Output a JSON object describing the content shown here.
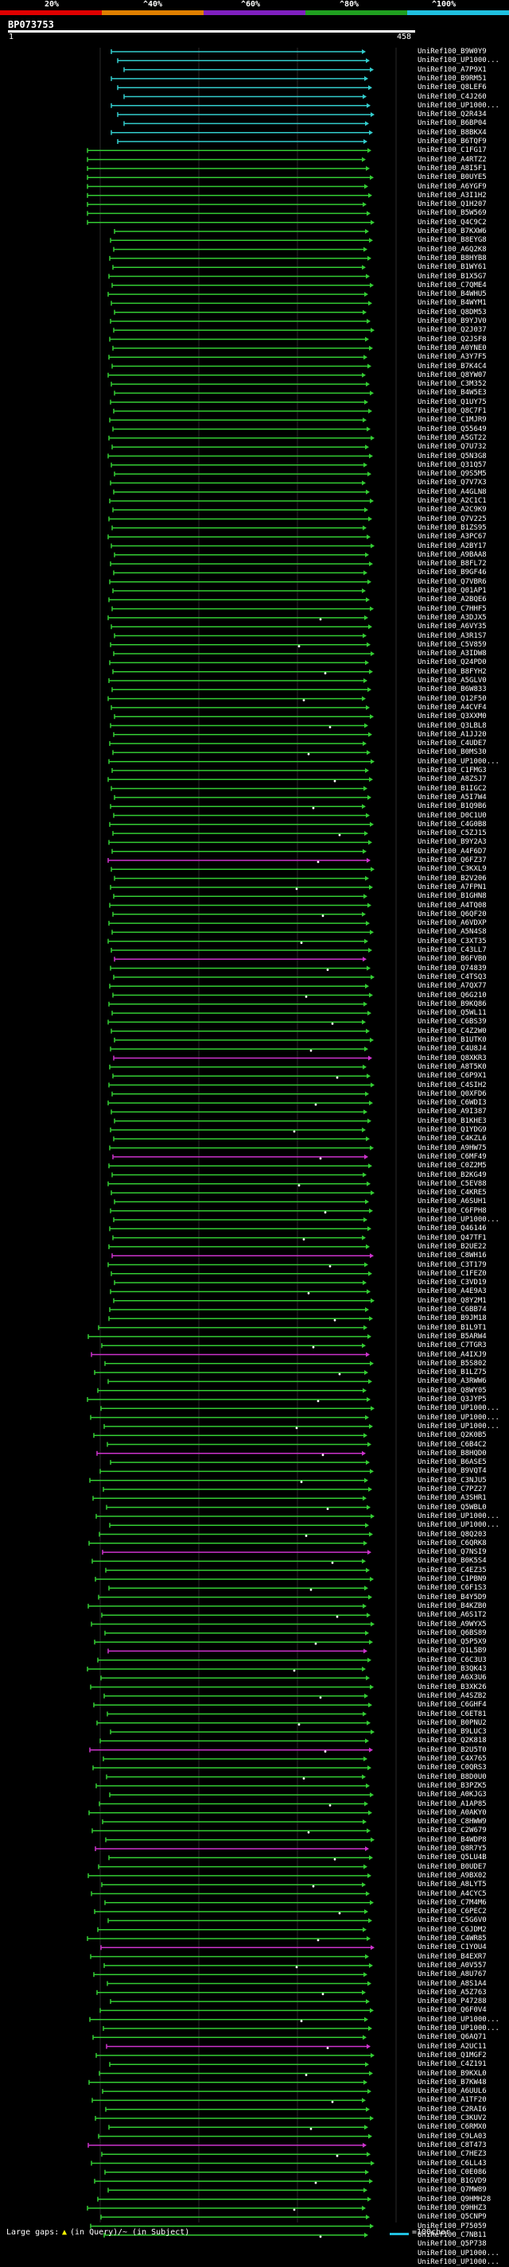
{
  "legend": {
    "ticks": [
      "20%",
      "^40%",
      "^60%",
      "^80%",
      "^100%"
    ],
    "colors": [
      "#e00000",
      "#e08000",
      "#8020c0",
      "#20a020",
      "#20c0e0"
    ]
  },
  "query": {
    "name": "BP073753",
    "start": "1",
    "end": "458"
  },
  "hit_labels": [
    "UniRef100_B9W0Y9",
    "UniRef100_UP1000...",
    "UniRef100_A7P9X1",
    "UniRef100_B9RM51",
    "UniRef100_Q8LEF6",
    "UniRef100_C4J260",
    "UniRef100_UP1000...",
    "UniRef100_Q2R434",
    "UniRef100_B6BP04",
    "UniRef100_B8BKX4",
    "UniRef100_B6TQF9",
    "UniRef100_C1FG17",
    "UniRef100_A4RTZ2",
    "UniRef100_A8I5F1",
    "UniRef100_B0UYE5",
    "UniRef100_A6YGF9",
    "UniRef100_A3I1H2",
    "UniRef100_Q1H207",
    "UniRef100_B5W569",
    "UniRef100_Q4C9C2",
    "UniRef100_B7KXW6",
    "UniRef100_B8EYG8",
    "UniRef100_A6Q2K8",
    "UniRef100_B8HYB8",
    "UniRef100_B1WY61",
    "UniRef100_B1X5G7",
    "UniRef100_C7QME4",
    "UniRef100_B4WHU5",
    "UniRef100_B4WYM1",
    "UniRef100_Q8DM53",
    "UniRef100_B9YJV0",
    "UniRef100_Q2J037",
    "UniRef100_Q2JSF8",
    "UniRef100_A0YNE0",
    "UniRef100_A3Y7F5",
    "UniRef100_B7K4C4",
    "UniRef100_Q8YW07",
    "UniRef100_C3M352",
    "UniRef100_B4W5E3",
    "UniRef100_Q1UY75",
    "UniRef100_Q8C7F1",
    "UniRef100_C1MJR9",
    "UniRef100_Q55649",
    "UniRef100_A5GT22",
    "UniRef100_Q7U732",
    "UniRef100_Q5N3G8",
    "UniRef100_Q31Q57",
    "UniRef100_Q9S5M5",
    "UniRef100_Q7V7X3",
    "UniRef100_A4GLN8",
    "UniRef100_A2C1C1",
    "UniRef100_A2C9K9",
    "UniRef100_Q7V225",
    "UniRef100_B1ZS95",
    "UniRef100_A3PC67",
    "UniRef100_A2BY17",
    "UniRef100_A9BAA8",
    "UniRef100_B8FL72",
    "UniRef100_B9GF46",
    "UniRef100_Q7VBR6",
    "UniRef100_Q01AP1",
    "UniRef100_A2BQE6",
    "UniRef100_C7HHF5",
    "UniRef100_A3DJX5",
    "UniRef100_A6VY35",
    "UniRef100_A3R1S7",
    "UniRef100_C5V859",
    "UniRef100_A3IDW8",
    "UniRef100_Q24PD0",
    "UniRef100_B8FYH2",
    "UniRef100_A5GLV0",
    "UniRef100_B6W833",
    "UniRef100_Q12F50",
    "UniRef100_A4CVF4",
    "UniRef100_Q3XXM0",
    "UniRef100_Q3LBL8",
    "UniRef100_A1JJ20",
    "UniRef100_C4UDE7",
    "UniRef100_B0MS30",
    "UniRef100_UP1000...",
    "UniRef100_C1FMG3",
    "UniRef100_A8ZSJ7",
    "UniRef100_B1IGC2",
    "UniRef100_A5I7W4",
    "UniRef100_B1Q9B6",
    "UniRef100_D0C1U0",
    "UniRef100_C4G0B8",
    "UniRef100_C5ZJ15",
    "UniRef100_B9Y2A3",
    "UniRef100_A4F6D7",
    "UniRef100_Q6FZ37",
    "UniRef100_C3KXL9",
    "UniRef100_B2V206",
    "UniRef100_A7FPN1",
    "UniRef100_B1GHN8",
    "UniRef100_A4TQ08",
    "UniRef100_Q6QF20",
    "UniRef100_A6VDXP",
    "UniRef100_A5N4S8",
    "UniRef100_C3XT35",
    "UniRef100_C43LL7",
    "UniRef100_B6FVB0",
    "UniRef100_Q74839",
    "UniRef100_C4TSQ3",
    "UniRef100_A7QX77",
    "UniRef100_Q6G210",
    "UniRef100_B9KQ86",
    "UniRef100_Q5WL11",
    "UniRef100_C6BS39",
    "UniRef100_C4Z2W0",
    "UniRef100_B1UTK0",
    "UniRef100_C4U8J4",
    "UniRef100_Q8XKR3",
    "UniRef100_A8T5K0",
    "UniRef100_C6P9X1",
    "UniRef100_C4SIH2",
    "UniRef100_Q0XFD6",
    "UniRef100_C6WDI3",
    "UniRef100_A9I387",
    "UniRef100_B1KHE3",
    "UniRef100_Q1YDG9",
    "UniRef100_C4KZL6",
    "UniRef100_A9HW75",
    "UniRef100_C6MF49",
    "UniRef100_C0Z2M5",
    "UniRef100_B2KG49",
    "UniRef100_C5EV88",
    "UniRef100_C4KRE5",
    "UniRef100_A6SUH1",
    "UniRef100_C6FPH8",
    "UniRef100_UP1000...",
    "UniRef100_Q46146",
    "UniRef100_Q47TF1",
    "UniRef100_B2UE22",
    "UniRef100_C8WH16",
    "UniRef100_C3T179",
    "UniRef100_C1FEZ0",
    "UniRef100_C3VD19",
    "UniRef100_A4E9A3",
    "UniRef100_Q8Y2M1",
    "UniRef100_C6BB74",
    "UniRef100_B9JM18",
    "UniRef100_B1L9T1",
    "UniRef100_B5ARW4",
    "UniRef100_C7TGR3",
    "UniRef100_A4IXJ9",
    "UniRef100_B5S802",
    "UniRef100_B1LZ75",
    "UniRef100_A3RWW6",
    "UniRef100_Q8WY05",
    "UniRef100_Q3JYP5",
    "UniRef100_UP1000...",
    "UniRef100_UP1000...",
    "UniRef100_UP1000...",
    "UniRef100_Q2K0B5",
    "UniRef100_C6B4C2",
    "UniRef100_B8HQD0",
    "UniRef100_B6ASE5",
    "UniRef100_B9VQT4",
    "UniRef100_C3NJU5",
    "UniRef100_C7PZ27",
    "UniRef100_A3SHR1",
    "UniRef100_Q5WBL0",
    "UniRef100_UP1000...",
    "UniRef100_UP1000...",
    "UniRef100_Q8Q203",
    "UniRef100_C6QRK8",
    "UniRef100_Q7NSI9",
    "UniRef100_B0K5S4",
    "UniRef100_C4EZ35",
    "UniRef100_C1PBN9",
    "UniRef100_C6F1S3",
    "UniRef100_B4Y5D9",
    "UniRef100_B4KZB0",
    "UniRef100_A6S1T2",
    "UniRef100_A9WYX5",
    "UniRef100_Q6BS89",
    "UniRef100_Q5P5X9",
    "UniRef100_Q1L5B9",
    "UniRef100_C6C3U3",
    "UniRef100_B3QK43",
    "UniRef100_A6X3U6",
    "UniRef100_B3XK26",
    "UniRef100_A4SZB2",
    "UniRef100_C6GHF4",
    "UniRef100_C6ET81",
    "UniRef100_B0PNU2",
    "UniRef100_B9LUC3",
    "UniRef100_Q2K818",
    "UniRef100_B2U5T0",
    "UniRef100_C4X765",
    "UniRef100_C0QRS3",
    "UniRef100_B8D0U0",
    "UniRef100_B3PZK5",
    "UniRef100_A0KJG3",
    "UniRef100_A1AP85",
    "UniRef100_A0AKY0",
    "UniRef100_C8HWW9",
    "UniRef100_C2W679",
    "UniRef100_B4WDP8",
    "UniRef100_Q8R7Y5",
    "UniRef100_Q5LU4B",
    "UniRef100_B0UDE7",
    "UniRef100_A9BX02",
    "UniRef100_A8LYT5",
    "UniRef100_A4CYC5",
    "UniRef100_C7M4M6",
    "UniRef100_C6PEC2",
    "UniRef100_C5G6V0",
    "UniRef100_C6JDM2",
    "UniRef100_C4WR85",
    "UniRef100_C1YOU4",
    "UniRef100_B4EXR7",
    "UniRef100_A0V557",
    "UniRef100_A8U767",
    "UniRef100_A8S1A4",
    "UniRef100_A5Z763",
    "UniRef100_P47288",
    "UniRef100_Q6F0V4",
    "UniRef100_UP1000...",
    "UniRef100_UP1000...",
    "UniRef100_Q6AQ71",
    "UniRef100_A2UC11",
    "UniRef100_Q1MGF2",
    "UniRef100_C4Z191",
    "UniRef100_B9KXL0",
    "UniRef100_B7KW48",
    "UniRef100_A6UUL6",
    "UniRef100_A1TF20",
    "UniRef100_C2RAI6",
    "UniRef100_C3KUV2",
    "UniRef100_C6RMX0",
    "UniRef100_C9LA03",
    "UniRef100_C8T473",
    "UniRef100_C7HEZ3",
    "UniRef100_C6LL43",
    "UniRef100_C0E086",
    "UniRef100_B1GVD9",
    "UniRef100_Q7MW89",
    "UniRef100_Q9HMH28",
    "UniRef100_Q9HHZ3",
    "UniRef100_Q5CNP9",
    "UniRef100_P75059",
    "UniRef100_C7NB11",
    "UniRef100_Q5P738",
    "UniRef100_UP1000...",
    "UniRef100_UP1000..."
  ],
  "footer": {
    "large_gaps_label": "Large gaps:",
    "in_query_label": "(in Query)",
    "in_subject_label": "/~ (in Subject)",
    "scale_label": "=100char."
  }
}
